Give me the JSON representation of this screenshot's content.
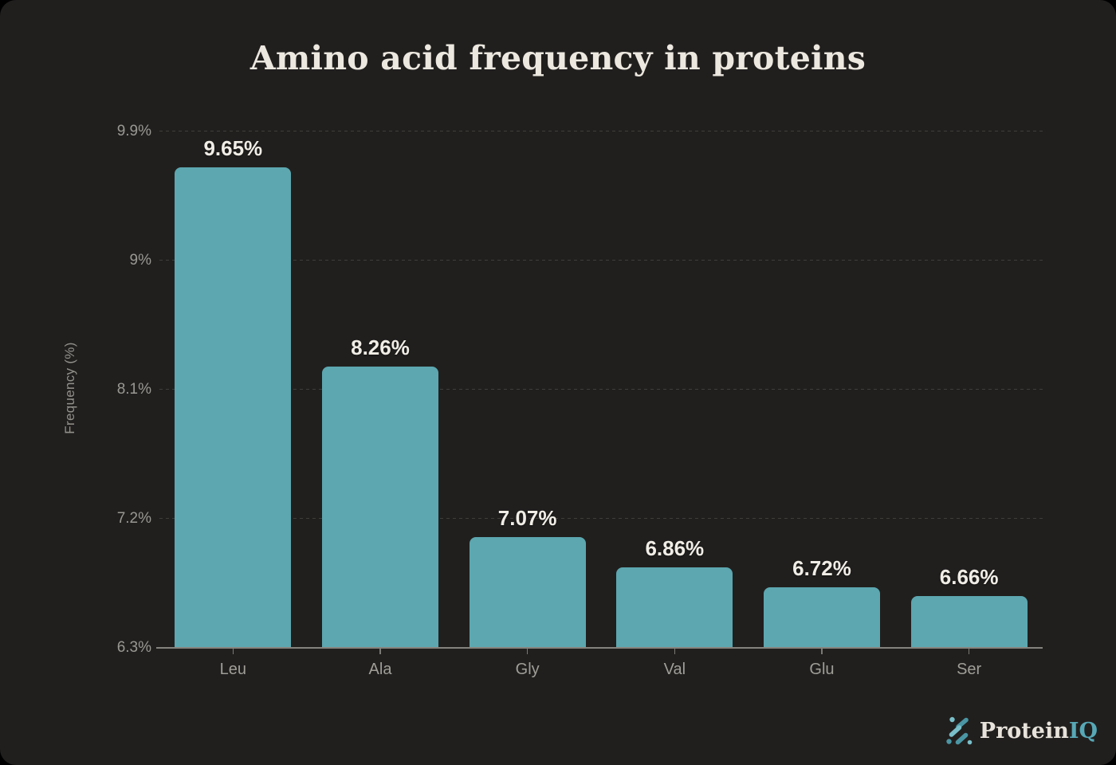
{
  "chart_data": {
    "type": "bar",
    "title": "Amino acid frequency in proteins",
    "xlabel": "",
    "ylabel": "Frequency (%)",
    "categories": [
      "Leu",
      "Ala",
      "Gly",
      "Val",
      "Glu",
      "Ser"
    ],
    "values": [
      9.65,
      8.26,
      7.07,
      6.86,
      6.72,
      6.66
    ],
    "value_labels": [
      "9.65%",
      "8.26%",
      "7.07%",
      "6.86%",
      "6.72%",
      "6.66%"
    ],
    "ylim": [
      6.3,
      9.9
    ],
    "yticks": [
      6.3,
      7.2,
      8.1,
      9,
      9.9
    ],
    "ytick_labels": [
      "6.3%",
      "7.2%",
      "8.1%",
      "9%",
      "9.9%"
    ],
    "grid": "horizontal-dashed",
    "legend_position": "none",
    "bar_color": "#5ca7b0"
  },
  "branding": {
    "logo_primary": "Protein",
    "logo_accent": "IQ",
    "icon": "molecule-icon",
    "accent_color": "#57a8b6"
  },
  "colors": {
    "background": "#000000",
    "card": "#211f1e",
    "title_text": "#ece8e0",
    "value_label_text": "#f0ede6",
    "tick_text": "#9a9892",
    "x_label_text": "#a09e97",
    "axis_line": "#85837d",
    "gridline": "#403e3b",
    "bar": "#5ca7b0",
    "logo_icon_light": "#79bfc9",
    "logo_icon_dark": "#4a96a4"
  }
}
